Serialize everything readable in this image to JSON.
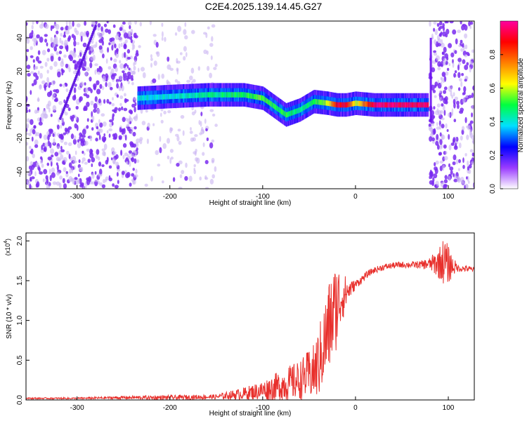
{
  "title": "C2E4.2025.139.14.45.G27",
  "colors": {
    "snr_line": "#e8302c",
    "axis": "#000000",
    "spec_scatter": "#7a2cf0",
    "spec_faint": "#c9b4f2",
    "colorbar_stops": [
      "#ffffff",
      "#9a3bff",
      "#0000ff",
      "#00e0ff",
      "#00ff40",
      "#ffff00",
      "#ff8000",
      "#ff0000",
      "#ff00a0"
    ]
  },
  "chart_data": [
    {
      "type": "heatmap",
      "name": "spectrogram",
      "xlabel": "Height of straight line (km)",
      "ylabel": "Frequency (Hz)",
      "xlim": [
        -355,
        128
      ],
      "ylim": [
        -50,
        50
      ],
      "xticks": [
        -300,
        -200,
        -100,
        0,
        100
      ],
      "xtick_labels": [
        "-300",
        "-200",
        "-100",
        "0",
        "100"
      ],
      "yticks": [
        -40,
        -20,
        0,
        20,
        40
      ],
      "ytick_labels": [
        "-40",
        "-20",
        "0",
        "20",
        "40"
      ],
      "colorbar": {
        "label": "Normalized spectral amplitude",
        "range": [
          0,
          1
        ],
        "ticks": [
          0.0,
          0.2,
          0.4,
          0.6,
          0.8
        ],
        "tick_labels": [
          "0.0",
          "0.2",
          "0.4",
          "0.6",
          "0.8"
        ]
      },
      "signal_track": {
        "x": [
          -235,
          -200,
          -160,
          -120,
          -100,
          -85,
          -75,
          -60,
          -45,
          -30,
          -20,
          -10,
          0,
          20,
          50,
          78
        ],
        "y": [
          4,
          5,
          6,
          6,
          4,
          -2,
          -6,
          -3,
          2,
          1,
          0,
          0,
          1,
          0,
          0,
          0
        ],
        "amplitude": [
          0.4,
          0.4,
          0.45,
          0.5,
          0.55,
          0.5,
          0.5,
          0.45,
          0.5,
          0.6,
          0.9,
          0.9,
          0.6,
          0.95,
          0.95,
          0.95
        ]
      },
      "noise_regions": [
        {
          "x": [
            -355,
            -235
          ],
          "level": "strong"
        },
        {
          "x": [
            -235,
            -150
          ],
          "level": "faint"
        },
        {
          "x": [
            80,
            128
          ],
          "level": "strong"
        }
      ]
    },
    {
      "type": "line",
      "name": "snr",
      "xlabel": "Height of straight line (km)",
      "ylabel": "SNR (10 * v/v)",
      "y_multiplier_label": "(x10",
      "y_multiplier_exp": "4",
      "y_multiplier_close": ")",
      "xlim": [
        -355,
        128
      ],
      "ylim": [
        0,
        2.1
      ],
      "xticks": [
        -300,
        -200,
        -100,
        0,
        100
      ],
      "xtick_labels": [
        "-300",
        "-200",
        "-100",
        "0",
        "100"
      ],
      "yticks": [
        0.0,
        0.5,
        1.0,
        1.5,
        2.0
      ],
      "ytick_labels": [
        "0.0",
        "0.5",
        "1.0",
        "1.5",
        "2.0"
      ],
      "series": [
        {
          "x": [
            -355,
            -300,
            -250,
            -200,
            -150,
            -120,
            -100,
            -80,
            -60,
            -45,
            -40,
            -35,
            -30,
            -25,
            -20,
            -15,
            -10,
            -5,
            0,
            5,
            10,
            15,
            20,
            25,
            30,
            40,
            50,
            60,
            70,
            80,
            90,
            95,
            100,
            105,
            110,
            115,
            120,
            128
          ],
          "y": [
            0.02,
            0.02,
            0.03,
            0.03,
            0.04,
            0.08,
            0.12,
            0.18,
            0.25,
            0.35,
            0.45,
            0.65,
            0.85,
            1.05,
            1.2,
            1.3,
            1.35,
            1.4,
            1.45,
            1.5,
            1.55,
            1.6,
            1.63,
            1.65,
            1.67,
            1.69,
            1.7,
            1.7,
            1.7,
            1.71,
            1.72,
            1.75,
            1.7,
            1.68,
            1.66,
            1.65,
            1.65,
            1.64
          ],
          "spread": [
            0.01,
            0.01,
            0.02,
            0.03,
            0.03,
            0.08,
            0.12,
            0.2,
            0.25,
            0.35,
            0.45,
            0.5,
            0.6,
            0.6,
            0.55,
            0.35,
            0.2,
            0.1,
            0.06,
            0.05,
            0.05,
            0.04,
            0.04,
            0.04,
            0.04,
            0.04,
            0.04,
            0.04,
            0.05,
            0.08,
            0.2,
            0.3,
            0.25,
            0.12,
            0.05,
            0.04,
            0.04,
            0.03
          ]
        }
      ]
    }
  ]
}
